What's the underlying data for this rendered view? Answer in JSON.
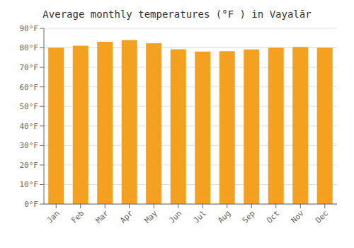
{
  "chart_data": {
    "type": "bar",
    "title": "Average monthly temperatures (°F ) in Vayalār",
    "categories": [
      "Jan",
      "Feb",
      "Mar",
      "Apr",
      "May",
      "Jun",
      "Jul",
      "Aug",
      "Sep",
      "Oct",
      "Nov",
      "Dec"
    ],
    "values": [
      80.1,
      81.1,
      83.1,
      84.0,
      82.4,
      79.3,
      78.1,
      78.3,
      79.2,
      80.1,
      80.5,
      80.1
    ],
    "color": "#F4A020",
    "ylim": [
      0,
      90
    ],
    "yticks": [
      {
        "value": 0,
        "label": "0°F"
      },
      {
        "value": 10,
        "label": "10°F"
      },
      {
        "value": 20,
        "label": "20°F"
      },
      {
        "value": 30,
        "label": "30°F"
      },
      {
        "value": 40,
        "label": "40°F"
      },
      {
        "value": 50,
        "label": "50°F"
      },
      {
        "value": 60,
        "label": "60°F"
      },
      {
        "value": 70,
        "label": "70°F"
      },
      {
        "value": 80,
        "label": "80°F"
      },
      {
        "value": 90,
        "label": "90°F"
      }
    ],
    "grid": true
  }
}
